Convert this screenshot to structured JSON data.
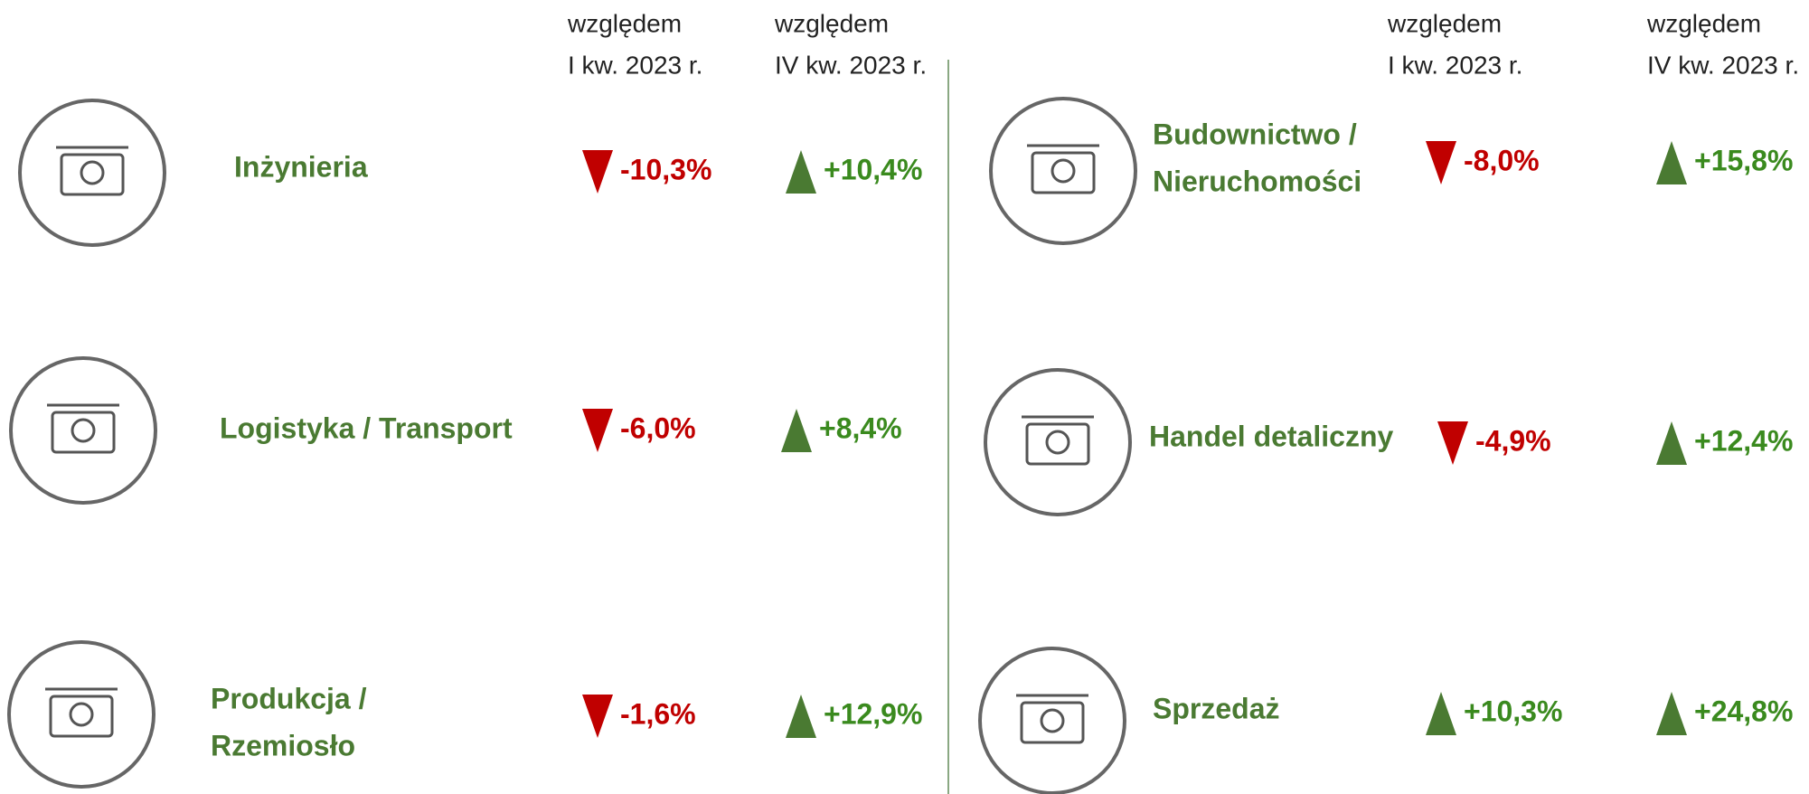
{
  "column_headers": {
    "left": [
      [
        "względem",
        "I kw. 2023 r."
      ],
      [
        "względem",
        "IV kw. 2023 r."
      ]
    ],
    "right": [
      [
        "względem",
        "I kw. 2023 r."
      ],
      [
        "względem",
        "IV kw. 2023 r."
      ]
    ]
  },
  "sectors": [
    {
      "name": [
        "Inżynieria"
      ],
      "vs_q1_2023": "-10,3%",
      "vs_q4_2023": "+10,4%"
    },
    {
      "name": [
        "Logistyka / Transport"
      ],
      "vs_q1_2023": "-6,0%",
      "vs_q4_2023": "+8,4%"
    },
    {
      "name": [
        "Produkcja /",
        "Rzemiosło"
      ],
      "vs_q1_2023": "-1,6%",
      "vs_q4_2023": "+12,9%"
    },
    {
      "name": [
        "Budownictwo /",
        "Nieruchomości"
      ],
      "vs_q1_2023": "-8,0%",
      "vs_q4_2023": "+15,8%"
    },
    {
      "name": [
        "Handel detaliczny"
      ],
      "vs_q1_2023": "-4,9%",
      "vs_q4_2023": "+12,4%"
    },
    {
      "name": [
        "Sprzedaż"
      ],
      "vs_q1_2023": "+10,3%",
      "vs_q4_2023": "+24,8%"
    }
  ]
}
